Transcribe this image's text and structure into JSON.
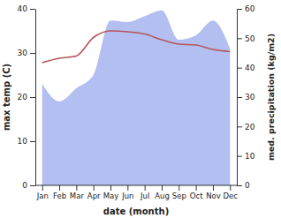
{
  "chart_data": {
    "type": "line",
    "x_label": "date (month)",
    "y_label": "max temp (C)",
    "y2_label": "med. precipitation (kg/m2)",
    "categories": [
      "Jan",
      "Feb",
      "Mar",
      "Apr",
      "May",
      "Jun",
      "Jul",
      "Aug",
      "Sep",
      "Oct",
      "Nov",
      "Dec"
    ],
    "ylim": [
      0,
      40
    ],
    "yticks": [
      0,
      10,
      20,
      30,
      40
    ],
    "y2lim": [
      0,
      60
    ],
    "y2ticks": [
      0,
      10,
      20,
      30,
      40,
      50,
      60
    ],
    "series": [
      {
        "name": "med. precipitation",
        "type": "area",
        "axis": "y2",
        "color": "#b3bff1",
        "values": [
          34.5,
          28.5,
          33,
          37.5,
          56,
          55.5,
          57.5,
          59.5,
          49.5,
          51,
          56,
          46.5
        ]
      },
      {
        "name": "max temp",
        "type": "line",
        "axis": "y",
        "color": "#b5565c",
        "values": [
          27.8,
          28.8,
          29.3,
          33.5,
          35,
          34.8,
          34.3,
          33,
          32,
          31.8,
          30.8,
          30.3
        ]
      }
    ]
  }
}
